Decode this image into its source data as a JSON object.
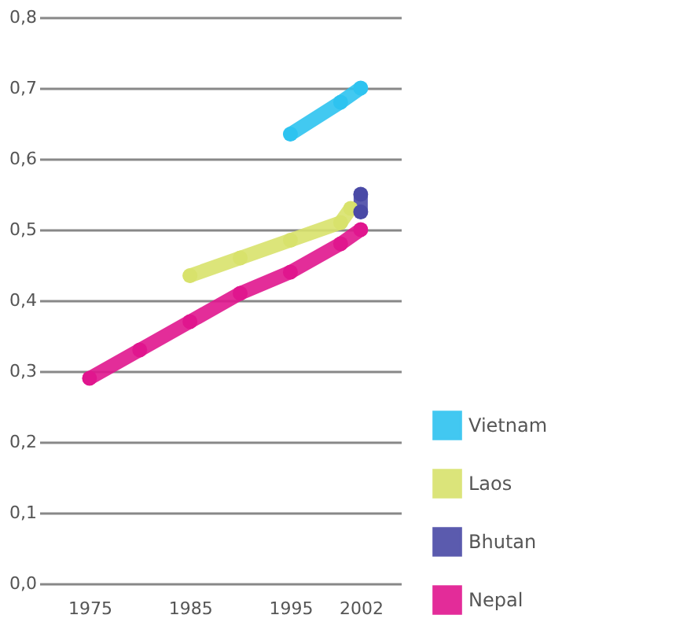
{
  "chart_data": {
    "type": "line",
    "xlim": [
      1970,
      2006
    ],
    "xticks": [
      1975,
      1985,
      1995,
      2002
    ],
    "ylim": [
      0,
      0.8
    ],
    "yticks": [
      {
        "value": 0,
        "label": "0,0"
      },
      {
        "value": 0.1,
        "label": "0,1"
      },
      {
        "value": 0.2,
        "label": "0,2"
      },
      {
        "value": 0.3,
        "label": "0,3"
      },
      {
        "value": 0.4,
        "label": "0,4"
      },
      {
        "value": 0.5,
        "label": "0,5"
      },
      {
        "value": 0.6,
        "label": "0,6"
      },
      {
        "value": 0.7,
        "label": "0,7"
      },
      {
        "value": 0.8,
        "label": "0,8"
      }
    ],
    "grid": "y",
    "legend": "bottom right",
    "marker": "circle",
    "line_style": "solid",
    "series": [
      {
        "name": "Vietnam",
        "color": "#2ec3f0",
        "x": [
          1995,
          2000,
          2002
        ],
        "values": [
          0.635,
          0.68,
          0.7
        ]
      },
      {
        "name": "Laos",
        "color": "#d8e26c",
        "x": [
          1985,
          1990,
          1995,
          2000,
          2001
        ],
        "values": [
          0.435,
          0.46,
          0.485,
          0.51,
          0.53
        ]
      },
      {
        "name": "Bhutan",
        "color": "#4a4aa6",
        "x": [
          2002,
          2002
        ],
        "values": [
          0.525,
          0.55
        ]
      },
      {
        "name": "Nepal",
        "color": "#e0168e",
        "x": [
          1975,
          1980,
          1985,
          1990,
          1995,
          2000,
          2002
        ],
        "values": [
          0.29,
          0.33,
          0.37,
          0.41,
          0.44,
          0.48,
          0.5
        ]
      }
    ]
  }
}
